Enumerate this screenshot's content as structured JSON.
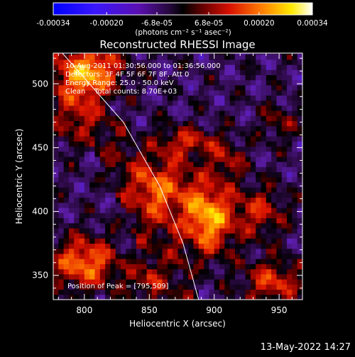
{
  "chart_data": {
    "type": "heatmap",
    "title": "Reconstructed RHESSI Image",
    "xlabel": "Heliocentric X (arcsec)",
    "ylabel": "Heliocentric Y (arcsec)",
    "xlim": [
      776,
      968
    ],
    "ylim": [
      331,
      524
    ],
    "x_ticks": [
      800,
      850,
      900,
      950
    ],
    "y_ticks": [
      350,
      400,
      450,
      500
    ],
    "colorbar": {
      "range": [
        -0.00034,
        0.00034
      ],
      "tick_labels": [
        "-0.00034",
        "-0.00020",
        "-6.8e-05",
        "6.8e-05",
        "0.00020",
        "0.00034"
      ],
      "tick_values": [
        -0.00034,
        -0.0002,
        -6.8e-05,
        6.8e-05,
        0.0002,
        0.00034
      ],
      "units_label": "(photons cm⁻² s⁻¹ asec⁻²)",
      "colormap": "RHESSI blue-purple-black-red-yellow-white"
    },
    "annotations": [
      "10-Aug-2011 01:30:56.000 to 01:36:56.000",
      "Detectors: 3F 4F 5F 6F 7F 8F, Att 0",
      "Energy Range: 25.0 - 50.0 keV",
      "Clean    Total counts: 8.70E+03"
    ],
    "peak_label": "Position of Peak = [795,509]",
    "peak": {
      "x": 795,
      "y": 509
    },
    "limb": [
      [
        783,
        524
      ],
      [
        830,
        470
      ],
      [
        858,
        420
      ],
      [
        876,
        375
      ],
      [
        888,
        331
      ]
    ],
    "hot_spots": [
      {
        "x": 895,
        "y": 395,
        "amp": 0.9,
        "sx": 14,
        "sy": 20
      },
      {
        "x": 805,
        "y": 510,
        "amp": 0.9,
        "sx": 16,
        "sy": 14
      },
      {
        "x": 860,
        "y": 420,
        "amp": 0.6,
        "sx": 16,
        "sy": 18
      },
      {
        "x": 800,
        "y": 360,
        "amp": 0.75,
        "sx": 18,
        "sy": 14
      },
      {
        "x": 935,
        "y": 400,
        "amp": 0.45,
        "sx": 14,
        "sy": 14
      },
      {
        "x": 945,
        "y": 345,
        "amp": 0.55,
        "sx": 16,
        "sy": 12
      },
      {
        "x": 880,
        "y": 455,
        "amp": 0.45,
        "sx": 18,
        "sy": 8
      },
      {
        "x": 790,
        "y": 470,
        "amp": 0.35,
        "sx": 12,
        "sy": 14
      },
      {
        "x": 910,
        "y": 440,
        "amp": 0.35,
        "sx": 10,
        "sy": 10
      },
      {
        "x": 950,
        "y": 470,
        "amp": 0.3,
        "sx": 10,
        "sy": 10
      },
      {
        "x": 845,
        "y": 345,
        "amp": 0.35,
        "sx": 10,
        "sy": 10
      }
    ]
  },
  "footer": {
    "date": "13-May-2022 14:27"
  }
}
